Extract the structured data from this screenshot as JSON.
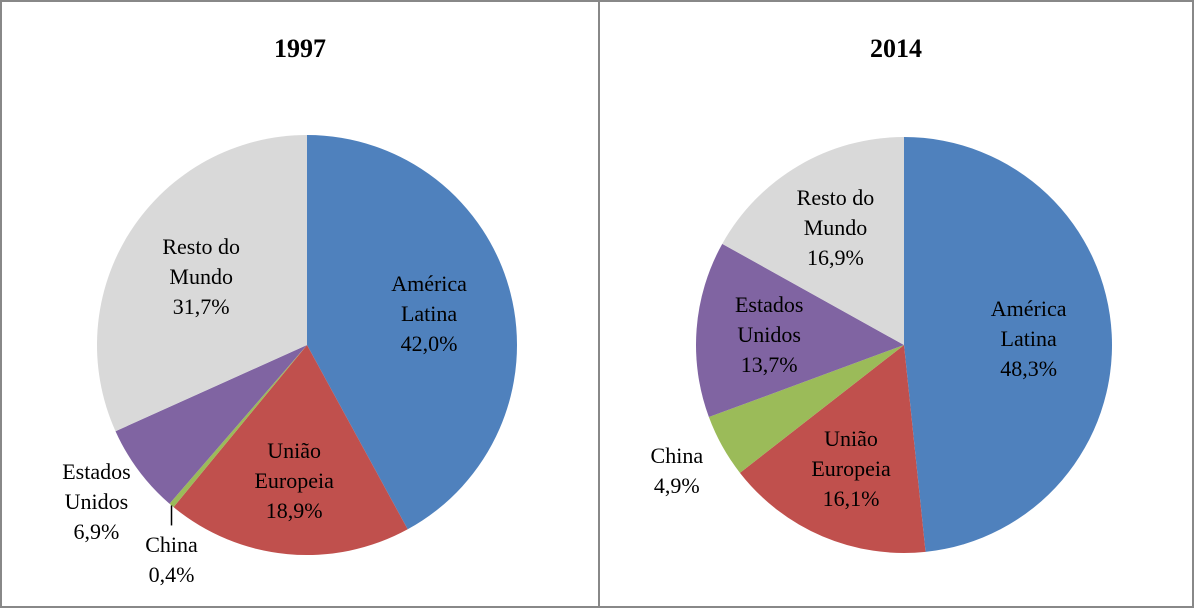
{
  "chart_data": [
    {
      "type": "pie",
      "title": "1997",
      "categories": [
        "América Latina",
        "União Europeia",
        "China",
        "Estados Unidos",
        "Resto do Mundo"
      ],
      "values": [
        42.0,
        18.9,
        0.4,
        6.9,
        31.7
      ],
      "value_labels": [
        "42,0%",
        "18,9%",
        "0,4%",
        "6,9%",
        "31,7%"
      ],
      "colors": [
        "#4f81bd",
        "#c0504d",
        "#9bbb59",
        "#8064a2",
        "#d9d9d9"
      ]
    },
    {
      "type": "pie",
      "title": "2014",
      "categories": [
        "América Latina",
        "União Europeia",
        "China",
        "Estados Unidos",
        "Resto do Mundo"
      ],
      "values": [
        48.3,
        16.1,
        4.9,
        13.7,
        16.9
      ],
      "value_labels": [
        "48,3%",
        "16,1%",
        "4,9%",
        "13,7%",
        "16,9%"
      ],
      "colors": [
        "#4f81bd",
        "#c0504d",
        "#9bbb59",
        "#8064a2",
        "#d9d9d9"
      ]
    }
  ]
}
